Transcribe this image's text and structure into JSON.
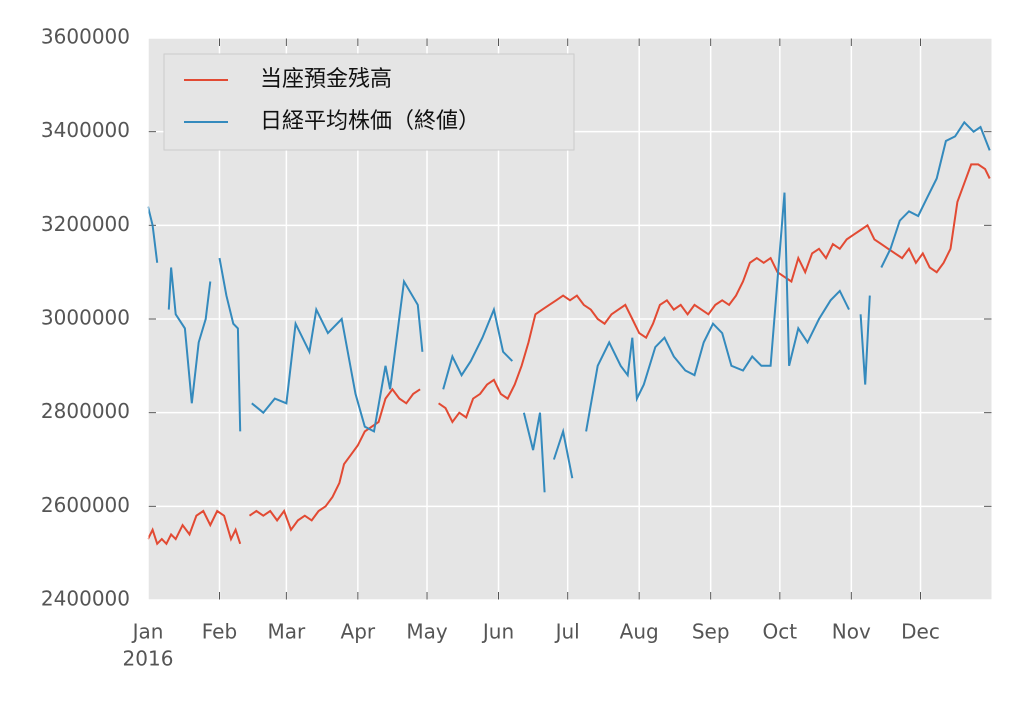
{
  "chart_data": {
    "type": "line",
    "xlim": [
      0,
      366
    ],
    "xticks": [
      {
        "value": 0,
        "label": "Jan"
      },
      {
        "value": 31,
        "label": "Feb"
      },
      {
        "value": 60,
        "label": "Mar"
      },
      {
        "value": 91,
        "label": "Apr"
      },
      {
        "value": 121,
        "label": "May"
      },
      {
        "value": 152,
        "label": "Jun"
      },
      {
        "value": 182,
        "label": "Jul"
      },
      {
        "value": 213,
        "label": "Aug"
      },
      {
        "value": 244,
        "label": "Sep"
      },
      {
        "value": 274,
        "label": "Oct"
      },
      {
        "value": 305,
        "label": "Nov"
      },
      {
        "value": 335,
        "label": "Dec"
      }
    ],
    "x_offset_label": "2016",
    "ylim": [
      2400000,
      3600000
    ],
    "yticks": [
      2400000,
      2600000,
      2800000,
      3000000,
      3200000,
      3400000,
      3600000
    ],
    "grid": true,
    "legend": "upper-left",
    "series": [
      {
        "name": "当座預金残高",
        "color": "#e24a33",
        "x": [
          0,
          2,
          4,
          6,
          8,
          10,
          12,
          15,
          18,
          21,
          24,
          27,
          30,
          33,
          36,
          38,
          40,
          42,
          44,
          47,
          50,
          53,
          56,
          59,
          62,
          65,
          68,
          71,
          74,
          77,
          80,
          83,
          85,
          88,
          91,
          94,
          97,
          100,
          103,
          106,
          109,
          112,
          115,
          118,
          122,
          126,
          129,
          132,
          135,
          138,
          141,
          144,
          147,
          150,
          153,
          156,
          159,
          162,
          165,
          168,
          171,
          174,
          177,
          180,
          183,
          186,
          189,
          192,
          195,
          198,
          201,
          204,
          207,
          210,
          213,
          216,
          219,
          222,
          225,
          228,
          231,
          234,
          237,
          240,
          243,
          246,
          249,
          252,
          255,
          258,
          261,
          264,
          267,
          270,
          273,
          276,
          279,
          282,
          285,
          288,
          291,
          294,
          297,
          300,
          303,
          306,
          309,
          312,
          315,
          318,
          321,
          324,
          327,
          330,
          333,
          336,
          339,
          342,
          345,
          348,
          351,
          354,
          357,
          360,
          363,
          365
        ],
        "values": [
          2530000,
          2550000,
          2520000,
          2530000,
          2520000,
          2540000,
          2530000,
          2560000,
          2540000,
          2580000,
          2590000,
          2560000,
          2590000,
          2580000,
          2530000,
          2550000,
          2520000,
          null,
          2580000,
          2590000,
          2580000,
          2590000,
          2570000,
          2590000,
          2550000,
          2570000,
          2580000,
          2570000,
          2590000,
          2600000,
          2620000,
          2650000,
          2690000,
          2710000,
          2730000,
          2760000,
          2770000,
          2780000,
          2830000,
          2850000,
          2830000,
          2820000,
          2840000,
          2850000,
          null,
          2820000,
          2810000,
          2780000,
          2800000,
          2790000,
          2830000,
          2840000,
          2860000,
          2870000,
          2840000,
          2830000,
          2860000,
          2900000,
          2950000,
          3010000,
          3020000,
          3030000,
          3040000,
          3050000,
          3040000,
          3050000,
          3030000,
          3020000,
          3000000,
          2990000,
          3010000,
          3020000,
          3030000,
          3000000,
          2970000,
          2960000,
          2990000,
          3030000,
          3040000,
          3020000,
          3030000,
          3010000,
          3030000,
          3020000,
          3010000,
          3030000,
          3040000,
          3030000,
          3050000,
          3080000,
          3120000,
          3130000,
          3120000,
          3130000,
          3100000,
          3090000,
          3080000,
          3130000,
          3100000,
          3140000,
          3150000,
          3130000,
          3160000,
          3150000,
          3170000,
          3180000,
          3190000,
          3200000,
          3170000,
          3160000,
          3150000,
          3140000,
          3130000,
          3150000,
          3120000,
          3140000,
          3110000,
          3100000,
          3120000,
          3150000,
          3250000,
          3290000,
          3330000,
          3330000,
          3320000,
          3300000
        ]
      },
      {
        "name": "日経平均株価（終値）",
        "color": "#348abd",
        "x": [
          0,
          2,
          4,
          7,
          9,
          10,
          12,
          16,
          19,
          22,
          25,
          27,
          29,
          31,
          34,
          37,
          39,
          40,
          42,
          45,
          50,
          55,
          60,
          64,
          70,
          73,
          78,
          84,
          90,
          94,
          98,
          103,
          105,
          111,
          117,
          119,
          123,
          128,
          132,
          136,
          140,
          145,
          150,
          154,
          158,
          160,
          163,
          167,
          170,
          172,
          174,
          176,
          180,
          184,
          187,
          190,
          195,
          200,
          205,
          208,
          210,
          212,
          215,
          220,
          224,
          228,
          233,
          237,
          241,
          245,
          249,
          253,
          258,
          262,
          266,
          270,
          276,
          278,
          282,
          286,
          291,
          296,
          300,
          304,
          307,
          309,
          311,
          313,
          315,
          318,
          322,
          326,
          330,
          334,
          338,
          342,
          346,
          350,
          354,
          358,
          361,
          365
        ],
        "values": [
          3240000,
          3200000,
          3120000,
          null,
          3020000,
          3110000,
          3010000,
          2980000,
          2820000,
          2950000,
          3000000,
          3080000,
          null,
          3130000,
          3050000,
          2990000,
          2980000,
          2760000,
          null,
          2820000,
          2800000,
          2830000,
          2820000,
          2990000,
          2930000,
          3020000,
          2970000,
          3000000,
          2840000,
          2770000,
          2760000,
          2900000,
          2850000,
          3080000,
          3030000,
          2930000,
          null,
          2850000,
          2920000,
          2880000,
          2910000,
          2960000,
          3020000,
          2930000,
          2910000,
          null,
          2800000,
          2720000,
          2800000,
          2630000,
          null,
          2700000,
          2760000,
          2660000,
          null,
          2760000,
          2900000,
          2950000,
          2900000,
          2880000,
          2960000,
          2830000,
          2860000,
          2940000,
          2960000,
          2920000,
          2890000,
          2880000,
          2950000,
          2990000,
          2970000,
          2900000,
          2890000,
          2920000,
          2900000,
          2900000,
          3270000,
          2900000,
          2980000,
          2950000,
          3000000,
          3040000,
          3060000,
          3020000,
          null,
          3010000,
          2860000,
          3050000,
          null,
          3110000,
          3150000,
          3210000,
          3230000,
          3220000,
          3260000,
          3300000,
          3380000,
          3390000,
          3420000,
          3400000,
          3410000,
          3360000
        ]
      }
    ]
  }
}
